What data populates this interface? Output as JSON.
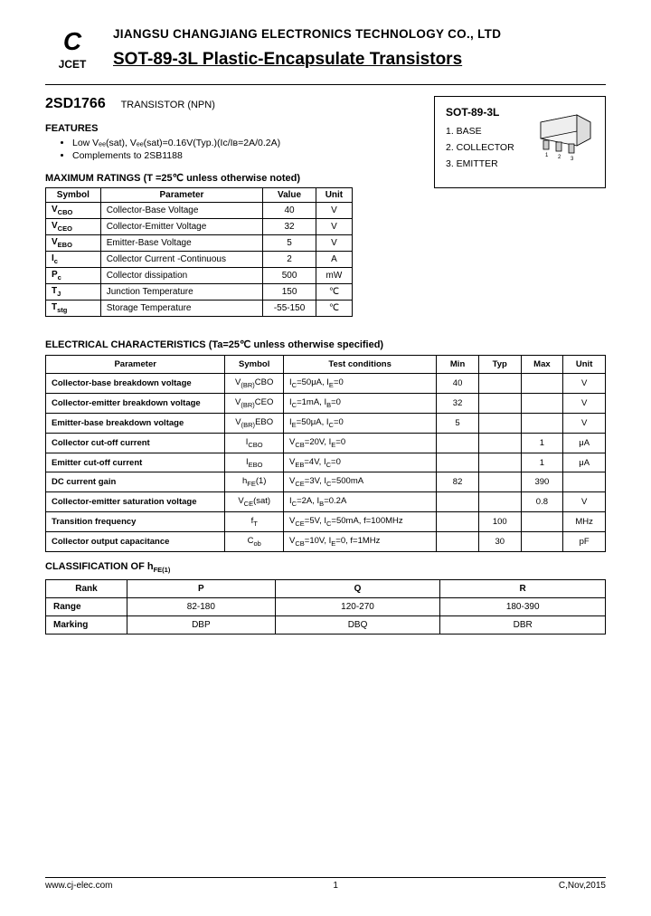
{
  "header": {
    "logo_text": "JCET",
    "company": "JIANGSU CHANGJIANG ELECTRONICS TECHNOLOGY CO., LTD",
    "title": "SOT-89-3L Plastic-Encapsulate Transistors"
  },
  "part": {
    "number": "2SD1766",
    "type": "TRANSISTOR (NPN)"
  },
  "features": {
    "heading": "FEATURES",
    "items": [
      "Low Vₑₑ(sat), Vₑₑ(sat)=0.16V(Typ.)(Iᴄ/Iʙ=2A/0.2A)",
      "Complements to 2SB1188"
    ]
  },
  "package": {
    "title": "SOT-89-3L",
    "pins": [
      "1. BASE",
      "2. COLLECTOR",
      "3. EMITTER"
    ]
  },
  "ratings": {
    "heading": "MAXIMUM RATINGS (T =25℃ unless otherwise noted)",
    "columns": [
      "Symbol",
      "Parameter",
      "Value",
      "Unit"
    ],
    "rows": [
      {
        "sym": "V_CBO",
        "param": "Collector-Base   Voltage",
        "val": "40",
        "unit": "V"
      },
      {
        "sym": "V_CEO",
        "param": "Collector-Emitter Voltage",
        "val": "32",
        "unit": "V"
      },
      {
        "sym": "V_EBO",
        "param": "Emitter-Base Voltage",
        "val": "5",
        "unit": "V"
      },
      {
        "sym": "I_c",
        "param": "Collector Current -Continuous",
        "val": "2",
        "unit": "A"
      },
      {
        "sym": "P_c",
        "param": "Collector dissipation",
        "val": "500",
        "unit": "mW"
      },
      {
        "sym": "T_J",
        "param": "Junction Temperature",
        "val": "150",
        "unit": "℃"
      },
      {
        "sym": "T_stg",
        "param": "Storage Temperature",
        "val": "-55-150",
        "unit": "℃"
      }
    ]
  },
  "elec": {
    "heading": "ELECTRICAL CHARACTERISTICS (Ta=25℃ unless otherwise specified)",
    "columns": [
      "Parameter",
      "Symbol",
      "Test conditions",
      "Min",
      "Typ",
      "Max",
      "Unit"
    ],
    "rows": [
      {
        "param": "Collector-base breakdown voltage",
        "sym": "V_(BR)CBO",
        "cond": "I_C=50μA, I_E=0",
        "min": "40",
        "typ": "",
        "max": "",
        "unit": "V"
      },
      {
        "param": "Collector-emitter breakdown voltage",
        "sym": "V_(BR)CEO",
        "cond": "I_C=1mA, I_B=0",
        "min": "32",
        "typ": "",
        "max": "",
        "unit": "V"
      },
      {
        "param": "Emitter-base breakdown voltage",
        "sym": "V_(BR)EBO",
        "cond": "I_E=50μA, I_C=0",
        "min": "5",
        "typ": "",
        "max": "",
        "unit": "V"
      },
      {
        "param": "Collector cut-off current",
        "sym": "I_CBO",
        "cond": "V_CB=20V, I_E=0",
        "min": "",
        "typ": "",
        "max": "1",
        "unit": "μA"
      },
      {
        "param": "Emitter cut-off current",
        "sym": "I_EBO",
        "cond": "V_EB=4V, I_C=0",
        "min": "",
        "typ": "",
        "max": "1",
        "unit": "μA"
      },
      {
        "param": "DC current gain",
        "sym": "h_FE(1)",
        "cond": "V_CE=3V, I_C=500mA",
        "min": "82",
        "typ": "",
        "max": "390",
        "unit": ""
      },
      {
        "param": "Collector-emitter saturation voltage",
        "sym": "V_CE(sat)",
        "cond": "I_C=2A, I_B=0.2A",
        "min": "",
        "typ": "",
        "max": "0.8",
        "unit": "V"
      },
      {
        "param": "Transition frequency",
        "sym": "f_T",
        "cond": "V_CE=5V, I_C=50mA, f=100MHz",
        "min": "",
        "typ": "100",
        "max": "",
        "unit": "MHz"
      },
      {
        "param": "Collector output capacitance",
        "sym": "C_ob",
        "cond": "V_CB=10V, I_E=0, f=1MHz",
        "min": "",
        "typ": "30",
        "max": "",
        "unit": "pF"
      }
    ]
  },
  "classification": {
    "heading": "CLASSIFICATION OF h_FE(1)",
    "columns": [
      "Rank",
      "P",
      "Q",
      "R"
    ],
    "rows": [
      {
        "label": "Range",
        "p": "82-180",
        "q": "120-270",
        "r": "180-390"
      },
      {
        "label": "Marking",
        "p": "DBP",
        "q": "DBQ",
        "r": "DBR"
      }
    ]
  },
  "footer": {
    "url": "www.cj-elec.com",
    "page": "1",
    "rev": "C,Nov,2015"
  }
}
